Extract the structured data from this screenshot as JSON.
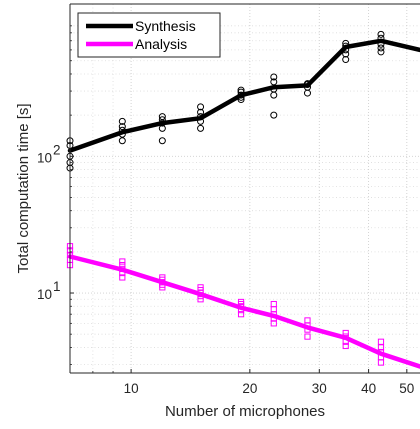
{
  "chart_data": {
    "type": "line",
    "xlabel": "Number of microphones",
    "ylabel": "Total computation time [s]",
    "x_scale": "log",
    "y_scale": "log",
    "xlim": [
      7,
      54
    ],
    "ylim": [
      2.6,
      1300
    ],
    "x_ticks": [
      10,
      20,
      30,
      40,
      50
    ],
    "x_tick_labels": [
      "10",
      "20",
      "30",
      "40",
      "50"
    ],
    "y_ticks": [
      10,
      100
    ],
    "y_tick_labels": [
      [
        "10",
        "1"
      ],
      [
        "10",
        "2"
      ]
    ],
    "grid": true,
    "legend_position": "top-left",
    "series": [
      {
        "name": "Synthesis",
        "color": "#000000",
        "marker": "circle",
        "x": [
          7,
          9.5,
          12,
          15,
          19,
          23,
          28,
          35,
          43,
          54
        ],
        "y": [
          110,
          150,
          175,
          190,
          280,
          320,
          330,
          630,
          700,
          600
        ],
        "samples": [
          [
            7,
            82
          ],
          [
            7,
            90
          ],
          [
            7,
            100
          ],
          [
            7,
            120
          ],
          [
            7,
            130
          ],
          [
            9.5,
            130
          ],
          [
            9.5,
            145
          ],
          [
            9.5,
            155
          ],
          [
            9.5,
            165
          ],
          [
            9.5,
            180
          ],
          [
            12,
            130
          ],
          [
            12,
            160
          ],
          [
            12,
            175
          ],
          [
            12,
            185
          ],
          [
            12,
            195
          ],
          [
            15,
            160
          ],
          [
            15,
            180
          ],
          [
            15,
            195
          ],
          [
            15,
            210
          ],
          [
            15,
            230
          ],
          [
            19,
            260
          ],
          [
            19,
            270
          ],
          [
            19,
            280
          ],
          [
            19,
            295
          ],
          [
            19,
            305
          ],
          [
            23,
            200
          ],
          [
            23,
            280
          ],
          [
            23,
            310
          ],
          [
            23,
            350
          ],
          [
            23,
            380
          ],
          [
            28,
            290
          ],
          [
            28,
            320
          ],
          [
            28,
            335
          ],
          [
            28,
            340
          ],
          [
            35,
            510
          ],
          [
            35,
            560
          ],
          [
            35,
            600
          ],
          [
            35,
            640
          ],
          [
            35,
            670
          ],
          [
            43,
            580
          ],
          [
            43,
            620
          ],
          [
            43,
            660
          ],
          [
            43,
            730
          ],
          [
            43,
            780
          ]
        ]
      },
      {
        "name": "Analysis",
        "color": "#ff00ff",
        "marker": "square",
        "x": [
          7,
          9.5,
          12,
          15,
          19,
          23,
          28,
          35,
          43,
          54
        ],
        "y": [
          18.5,
          14.8,
          12,
          9.8,
          7.8,
          6.8,
          5.6,
          4.7,
          3.6,
          2.9
        ],
        "samples": [
          [
            7,
            16
          ],
          [
            7,
            17.5
          ],
          [
            7,
            19
          ],
          [
            7,
            20.5
          ],
          [
            7,
            22
          ],
          [
            9.5,
            13
          ],
          [
            9.5,
            14
          ],
          [
            9.5,
            15
          ],
          [
            9.5,
            16
          ],
          [
            9.5,
            17
          ],
          [
            12,
            11
          ],
          [
            12,
            11.5
          ],
          [
            12,
            12
          ],
          [
            12,
            12.5
          ],
          [
            12,
            13
          ],
          [
            15,
            9
          ],
          [
            15,
            9.5
          ],
          [
            15,
            10
          ],
          [
            15,
            10.5
          ],
          [
            15,
            11
          ],
          [
            19,
            7
          ],
          [
            19,
            7.5
          ],
          [
            19,
            8
          ],
          [
            19,
            8.3
          ],
          [
            19,
            8.6
          ],
          [
            23,
            6
          ],
          [
            23,
            6.5
          ],
          [
            23,
            7
          ],
          [
            23,
            7.6
          ],
          [
            23,
            8.3
          ],
          [
            28,
            4.8
          ],
          [
            28,
            5.4
          ],
          [
            28,
            5.8
          ],
          [
            28,
            6.3
          ],
          [
            35,
            4.1
          ],
          [
            35,
            4.4
          ],
          [
            35,
            4.8
          ],
          [
            35,
            5.1
          ],
          [
            43,
            3.1
          ],
          [
            43,
            3.4
          ],
          [
            43,
            3.7
          ],
          [
            43,
            4.0
          ],
          [
            43,
            4.4
          ]
        ]
      }
    ]
  }
}
